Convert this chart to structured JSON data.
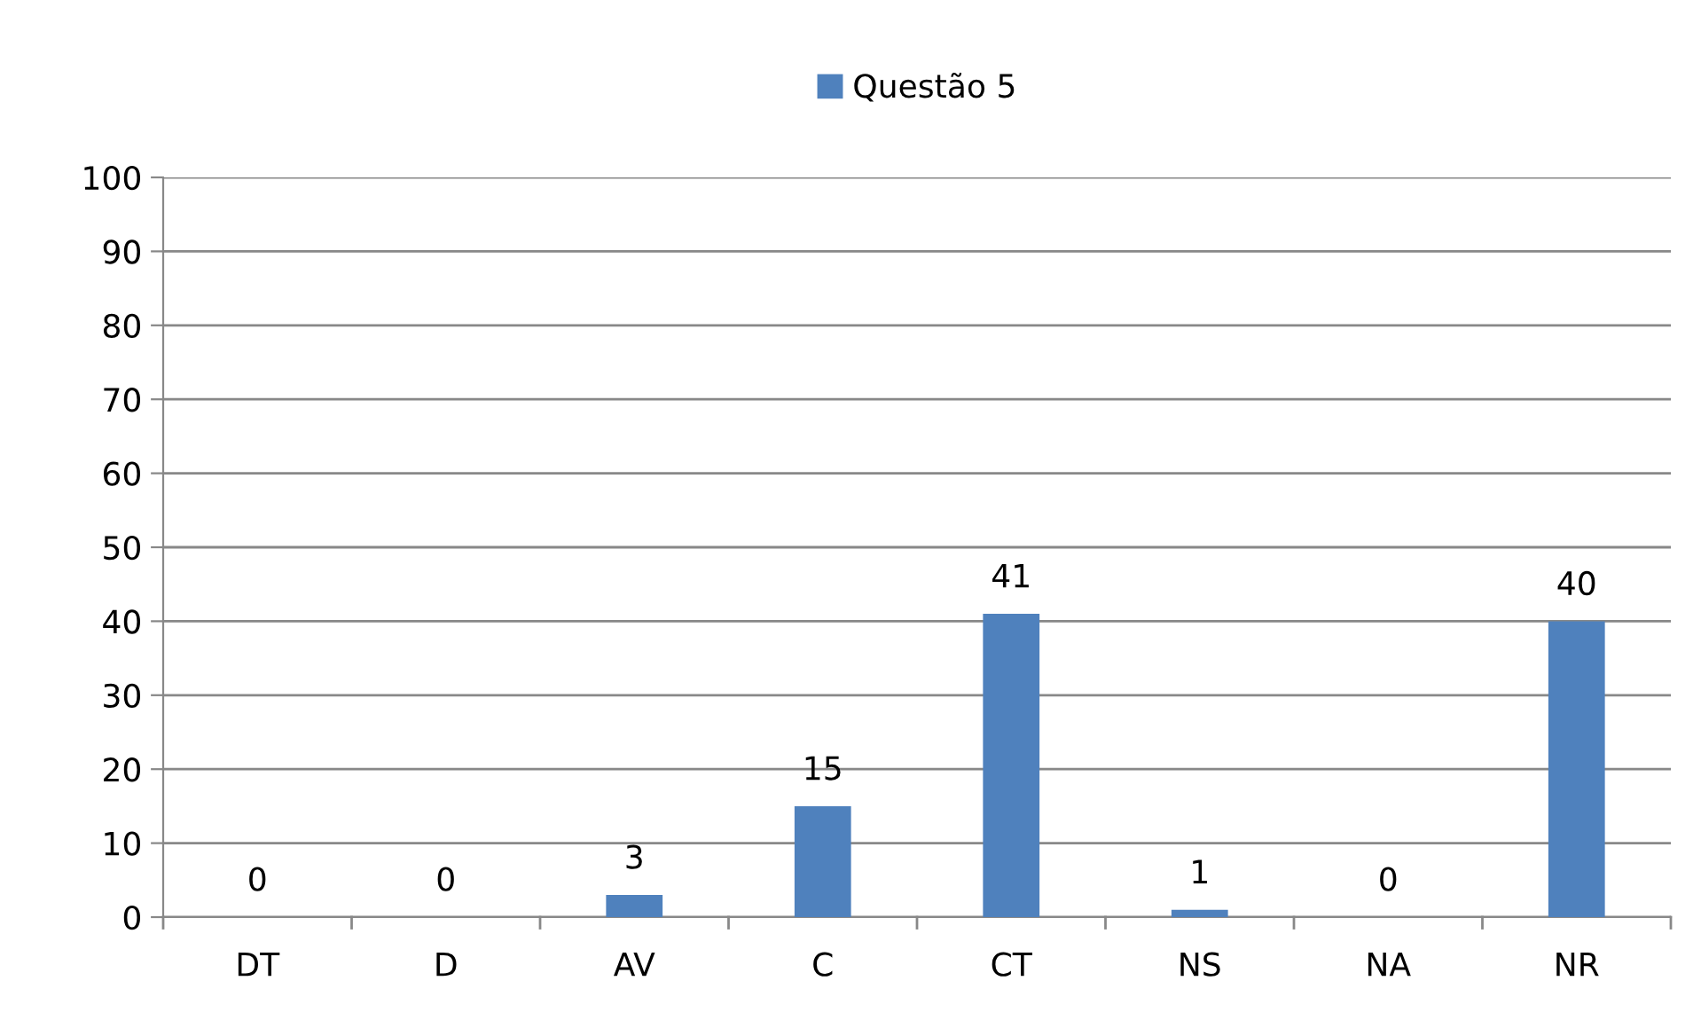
{
  "chart_data": {
    "type": "bar",
    "categories": [
      "DT",
      "D",
      "AV",
      "C",
      "CT",
      "NS",
      "NA",
      "NR"
    ],
    "series": [
      {
        "name": "Questão 5",
        "color": "#4f81bd",
        "values": [
          0,
          0,
          3,
          15,
          41,
          1,
          0,
          40
        ]
      }
    ],
    "ylim": [
      0,
      100
    ],
    "yticks": [
      0,
      10,
      20,
      30,
      40,
      50,
      60,
      70,
      80,
      90,
      100
    ],
    "grid": "y",
    "legend": "top",
    "data_labels": true
  }
}
